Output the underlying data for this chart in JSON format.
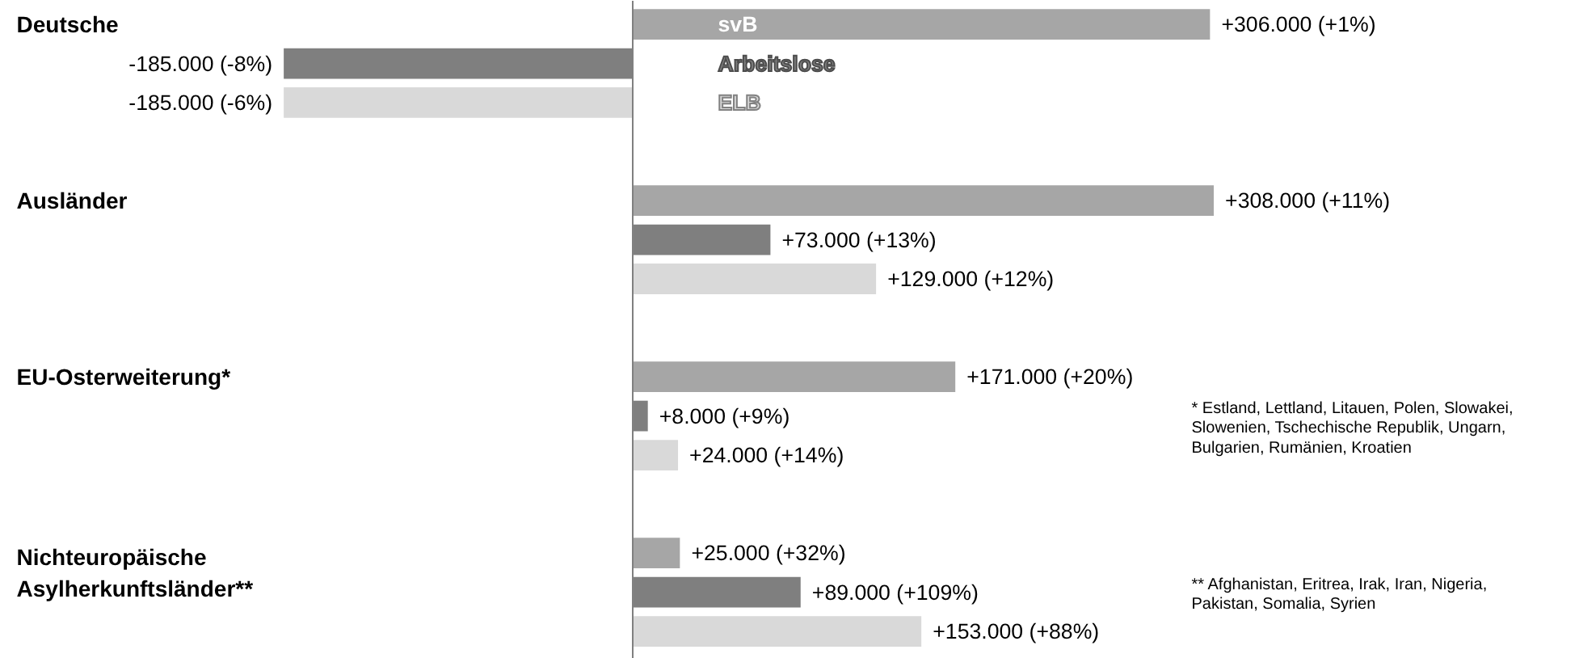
{
  "chart_data": {
    "type": "bar",
    "orientation": "horizontal",
    "legend": "top",
    "categories": [
      "Deutsche",
      "Ausländer",
      "EU-Osterweiterung*",
      "Nichteuropäische Asylherkunftsländer**"
    ],
    "series": [
      {
        "name": "svB",
        "color": "#a6a6a6",
        "values": [
          306000,
          308000,
          171000,
          25000
        ],
        "value_labels": [
          "+306.000 (+1%)",
          "+308.000 (+11%)",
          "+171.000 (+20%)",
          "+25.000 (+32%)"
        ]
      },
      {
        "name": "Arbeitslose",
        "color": "#7f7f7f",
        "values": [
          -185000,
          73000,
          8000,
          89000
        ],
        "value_labels": [
          "-185.000 (-8%)",
          "+73.000 (+13%)",
          "+8.000 (+9%)",
          "+89.000 (+109%)"
        ]
      },
      {
        "name": "ELB",
        "color": "#d9d9d9",
        "values": [
          -185000,
          129000,
          24000,
          153000
        ],
        "value_labels": [
          "-185.000 (-6%)",
          "+129.000 (+12%)",
          "+24.000 (+14%)",
          "+153.000 (+88%)"
        ]
      }
    ],
    "annotations": [
      "* Estland, Lettland, Litauen, Polen, Slowakei, Slowenien, Tschechische Republik, Ungarn, Bulgarien, Rumänien, Kroatien",
      "** Afghanistan, Eritrea, Irak, Iran, Nigeria, Pakistan, Somalia, Syrien"
    ]
  }
}
